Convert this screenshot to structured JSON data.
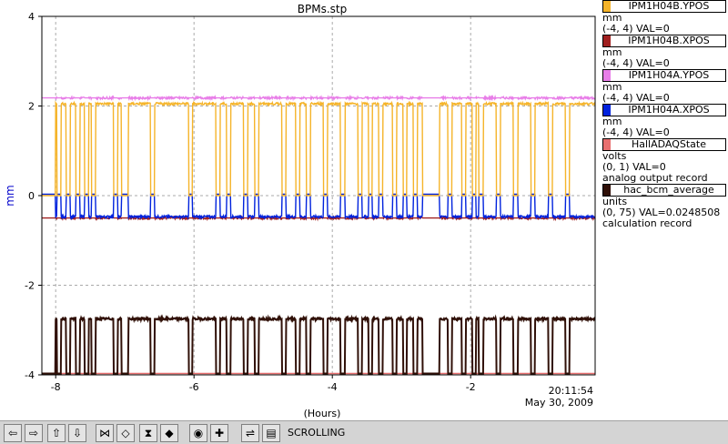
{
  "chart_data": {
    "type": "line",
    "title": "BPMs.stp",
    "xlabel": "(Hours)",
    "ylabel": "mm",
    "xlim": [
      -8.2,
      -0.2
    ],
    "ylim": [
      -4,
      4
    ],
    "x_ticks": [
      -8,
      -6,
      -4,
      -2
    ],
    "y_ticks": [
      -4,
      -2,
      0,
      2,
      4
    ],
    "grid": true,
    "timestamp": "20:11:54",
    "date": "May 30, 2009",
    "legend_position": "right",
    "series": [
      {
        "name": "IPM1H04B.YPOS",
        "color": "#f5b42a",
        "units": "mm",
        "range": "(-4, 4) VAL=0",
        "record": "",
        "base": 2.05,
        "drop": 0.0
      },
      {
        "name": "IPM1H04B.XPOS",
        "color": "#a02020",
        "units": "mm",
        "range": "(-4, 4) VAL=0",
        "record": "",
        "base": -0.5,
        "drop": -0.5
      },
      {
        "name": "IPM1H04A.YPOS",
        "color": "#e87ee8",
        "units": "mm",
        "range": "(-4, 4) VAL=0",
        "record": "",
        "base": 2.18,
        "drop": 2.18
      },
      {
        "name": "IPM1H04A.XPOS",
        "color": "#0022dd",
        "units": "mm",
        "range": "(-4, 4) VAL=0",
        "record": "",
        "base": -0.47,
        "drop": 0.0
      },
      {
        "name": "HallADAQState",
        "color": "#e87070",
        "units": "volts",
        "range": "(0, 1) VAL=0",
        "record": "analog output record",
        "base": -3.97,
        "drop": -3.97
      },
      {
        "name": "hac_bcm_average",
        "color": "#301008",
        "units": "units",
        "range": "(0, 75) VAL=0.0248508",
        "record": "calculation record",
        "base": -2.75,
        "drop": -3.97
      }
    ],
    "beam_on_segments": [
      [
        -8.0,
        -7.05
      ],
      [
        -6.95,
        -5.12
      ],
      [
        -5.06,
        -2.7
      ],
      [
        -2.45,
        -0.2
      ]
    ],
    "beam_off_after": -0.2,
    "trip_times": [
      -7.95,
      -7.82,
      -7.68,
      -7.55,
      -7.45,
      -7.13,
      -6.6,
      -6.05,
      -5.65,
      -5.5,
      -5.25,
      -4.7,
      -4.5,
      -4.35,
      -4.1,
      -3.85,
      -3.6,
      -3.45,
      -3.3,
      -3.1,
      -2.95,
      -2.8,
      -2.3,
      -2.1,
      -1.95,
      -1.85,
      -1.6,
      -1.35,
      -1.1,
      -0.85,
      -0.6
    ]
  },
  "legend": [
    {
      "name": "IPM1H04B.YPOS",
      "color": "#f5b42a",
      "lines": [
        "mm",
        "(-4, 4) VAL=0"
      ]
    },
    {
      "name": "IPM1H04B.XPOS",
      "color": "#a02020",
      "lines": [
        "mm",
        "(-4, 4) VAL=0"
      ]
    },
    {
      "name": "IPM1H04A.YPOS",
      "color": "#e87ee8",
      "lines": [
        "mm",
        "(-4, 4) VAL=0"
      ]
    },
    {
      "name": "IPM1H04A.XPOS",
      "color": "#0022dd",
      "lines": [
        "mm",
        "(-4, 4) VAL=0"
      ]
    },
    {
      "name": "HallADAQState",
      "color": "#e87070",
      "lines": [
        "volts",
        "(0, 1) VAL=0",
        "analog output record"
      ]
    },
    {
      "name": "hac_bcm_average",
      "color": "#301008",
      "lines": [
        "units",
        "(0, 75) VAL=0.0248508",
        "calculation record"
      ]
    }
  ],
  "toolbar": {
    "status": "SCROLLING",
    "buttons": [
      {
        "name": "scroll-left-button",
        "glyph": "⇦",
        "icon": "arrow-left-icon"
      },
      {
        "name": "scroll-right-button",
        "glyph": "⇨",
        "icon": "arrow-right-icon"
      },
      {
        "name": "scroll-up-button",
        "glyph": "⇧",
        "icon": "arrow-up-icon"
      },
      {
        "name": "scroll-down-button",
        "glyph": "⇩",
        "icon": "arrow-down-icon"
      },
      {
        "name": "zoom-in-x-button",
        "glyph": "⋈",
        "icon": "zoom-in-x-icon"
      },
      {
        "name": "zoom-out-x-button",
        "glyph": "◇",
        "icon": "zoom-out-x-icon"
      },
      {
        "name": "zoom-in-y-button",
        "glyph": "⧗",
        "icon": "zoom-in-y-icon"
      },
      {
        "name": "zoom-out-y-button",
        "glyph": "◆",
        "icon": "zoom-out-y-icon"
      },
      {
        "name": "auto-scale-button",
        "glyph": "◉",
        "icon": "circle-target-icon"
      },
      {
        "name": "zoom-point-button",
        "glyph": "✚",
        "icon": "plus-icon"
      },
      {
        "name": "toggle-scroll-button",
        "glyph": "⇌",
        "icon": "scroll-mode-icon"
      },
      {
        "name": "print-button",
        "glyph": "▤",
        "icon": "print-icon"
      }
    ]
  }
}
